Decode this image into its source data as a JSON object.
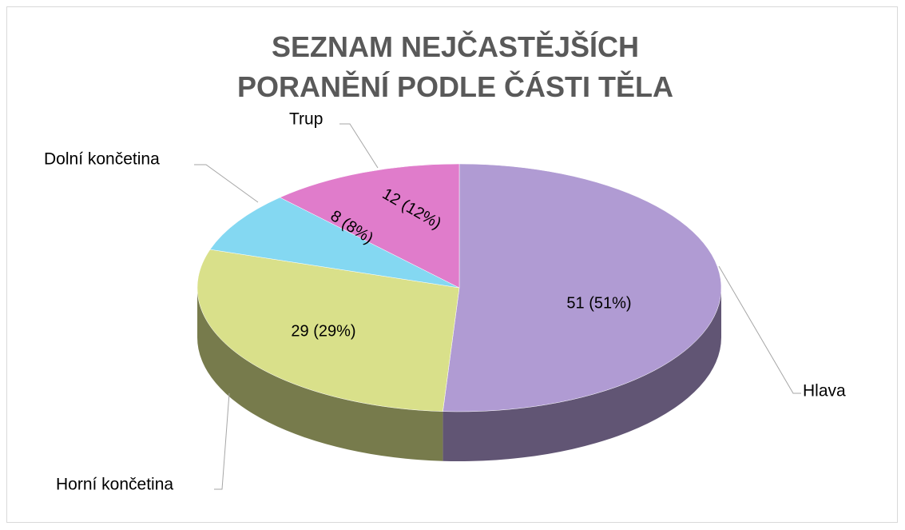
{
  "chart_data": {
    "type": "pie3d",
    "title": "SEZNAM NEJČASTĚJŠÍCH PORANĚNÍ PODLE ČÁSTI TĚLA",
    "categories": [
      "Hlava",
      "Horní končetina",
      "Dolní končetina",
      "Trup"
    ],
    "values": [
      51,
      29,
      8,
      12
    ],
    "value_labels": [
      "51 (51%)",
      "29 (29%)",
      "8 (8%)",
      "12 (12%)"
    ],
    "colors": [
      "#b09bd3",
      "#d9e08a",
      "#84d8f2",
      "#e07ccb"
    ]
  }
}
